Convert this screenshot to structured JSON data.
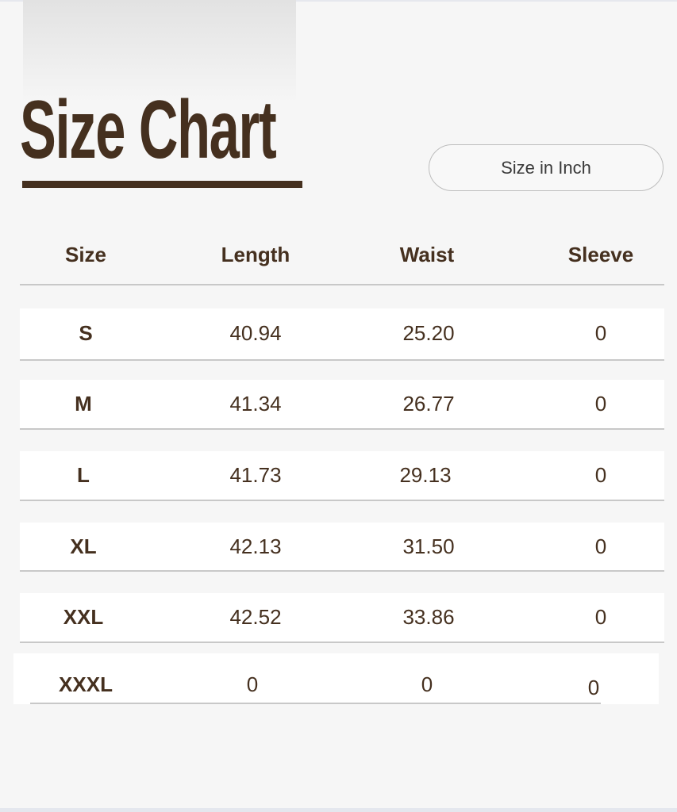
{
  "title": "Size Chart",
  "unit_button": "Size in Inch",
  "colors": {
    "text": "#45301f",
    "background": "#f6f6f6",
    "row": "#ffffff",
    "divider": "#c8c8c8"
  },
  "table": {
    "headers": [
      "Size",
      "Length",
      "Waist",
      "Sleeve"
    ],
    "rows": [
      [
        "S",
        "40.94",
        "25.20",
        "0"
      ],
      [
        "M",
        "41.34",
        "26.77",
        "0"
      ],
      [
        "L",
        "41.73",
        "29.13",
        "0"
      ],
      [
        "XL",
        "42.13",
        "31.50",
        "0"
      ],
      [
        "XXL",
        "42.52",
        "33.86",
        "0"
      ],
      [
        "XXXL",
        "0",
        "0",
        "0"
      ]
    ]
  }
}
